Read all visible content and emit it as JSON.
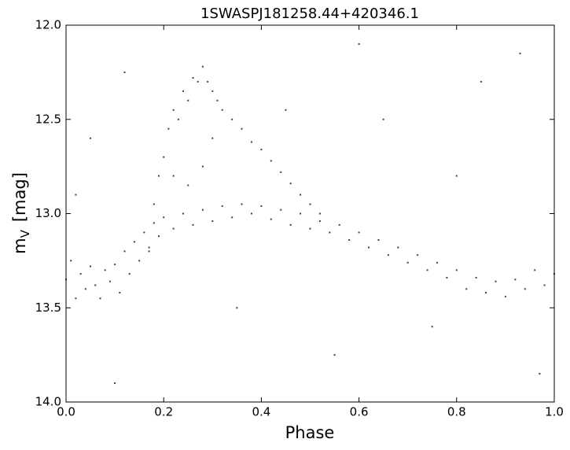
{
  "chart_data": {
    "type": "scatter",
    "title": "1SWASPJ181258.44+420346.1",
    "x_label": "Phase",
    "y_label": "m",
    "y_label_sub": "V",
    "y_label_unit": "[mag]",
    "color": "#404040",
    "y_inverted": true,
    "xlim": [
      0,
      1
    ],
    "ylim": [
      12,
      14
    ],
    "xticks": [
      {
        "value": 0,
        "label": "0.0"
      },
      0.2,
      0.4,
      0.6,
      0.8,
      {
        "value": 1,
        "label": "1.0"
      }
    ],
    "yticks": [
      {
        "value": 12,
        "label": "12.0"
      },
      12.5,
      {
        "value": 13,
        "label": "13.0"
      },
      13.5,
      {
        "value": 14,
        "label": "14.0"
      }
    ],
    "x": [
      0.0,
      0.01,
      0.02,
      0.03,
      0.04,
      0.05,
      0.06,
      0.07,
      0.08,
      0.09,
      0.1,
      0.11,
      0.12,
      0.13,
      0.14,
      0.15,
      0.16,
      0.17,
      0.18,
      0.19,
      0.2,
      0.22,
      0.24,
      0.26,
      0.28,
      0.3,
      0.32,
      0.34,
      0.36,
      0.38,
      0.4,
      0.42,
      0.44,
      0.46,
      0.48,
      0.5,
      0.52,
      0.54,
      0.56,
      0.58,
      0.6,
      0.62,
      0.64,
      0.66,
      0.68,
      0.7,
      0.72,
      0.74,
      0.76,
      0.78,
      0.8,
      0.82,
      0.84,
      0.86,
      0.88,
      0.9,
      0.92,
      0.94,
      0.96,
      0.98,
      1.0,
      0.17,
      0.18,
      0.19,
      0.2,
      0.21,
      0.22,
      0.23,
      0.24,
      0.25,
      0.26,
      0.27,
      0.28,
      0.29,
      0.3,
      0.31,
      0.32,
      0.34,
      0.36,
      0.38,
      0.4,
      0.42,
      0.44,
      0.46,
      0.48,
      0.5,
      0.52,
      0.22,
      0.25,
      0.28,
      0.3,
      0.05,
      0.12,
      0.45,
      0.55,
      0.65,
      0.75,
      0.85,
      0.93,
      0.1,
      0.35,
      0.6,
      0.8,
      0.97,
      0.02
    ],
    "y": [
      13.35,
      13.25,
      13.45,
      13.32,
      13.4,
      13.28,
      13.38,
      13.45,
      13.3,
      13.36,
      13.27,
      13.42,
      13.2,
      13.32,
      13.15,
      13.25,
      13.1,
      13.18,
      13.05,
      13.12,
      13.02,
      13.08,
      13.0,
      13.06,
      12.98,
      13.04,
      12.96,
      13.02,
      12.95,
      13.0,
      12.96,
      13.03,
      12.98,
      13.06,
      13.0,
      13.08,
      13.04,
      13.1,
      13.06,
      13.14,
      13.1,
      13.18,
      13.14,
      13.22,
      13.18,
      13.26,
      13.22,
      13.3,
      13.26,
      13.34,
      13.3,
      13.4,
      13.34,
      13.42,
      13.36,
      13.44,
      13.35,
      13.4,
      13.3,
      13.38,
      13.32,
      13.2,
      12.95,
      12.8,
      12.7,
      12.55,
      12.45,
      12.5,
      12.35,
      12.4,
      12.28,
      12.3,
      12.22,
      12.3,
      12.35,
      12.4,
      12.45,
      12.5,
      12.55,
      12.62,
      12.66,
      12.72,
      12.78,
      12.84,
      12.9,
      12.95,
      13.0,
      12.8,
      12.85,
      12.75,
      12.6,
      12.6,
      12.25,
      12.45,
      13.75,
      12.5,
      13.6,
      12.3,
      12.15,
      13.9,
      13.5,
      12.1,
      12.8,
      13.85,
      12.9
    ]
  }
}
